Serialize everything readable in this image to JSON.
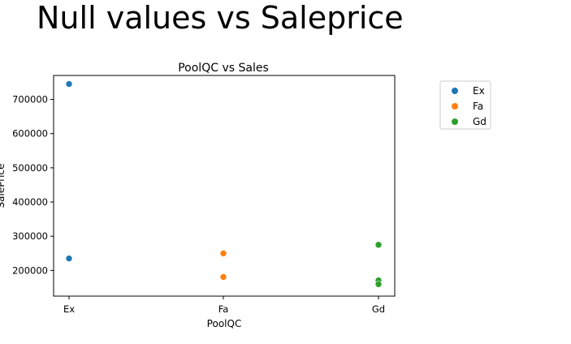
{
  "page": {
    "title": "Null values vs Saleprice"
  },
  "chart_data": {
    "type": "scatter",
    "title": "PoolQC vs Sales",
    "xlabel": "PoolQC",
    "ylabel": "SalePrice",
    "categories": [
      "Ex",
      "Fa",
      "Gd"
    ],
    "ylim": [
      125000,
      770000
    ],
    "yticks": [
      200000,
      300000,
      400000,
      500000,
      600000,
      700000
    ],
    "grid": false,
    "legend_position": "outside-right",
    "series": [
      {
        "name": "Ex",
        "color": "#1f77b4",
        "points": [
          {
            "x": "Ex",
            "y": 745000
          },
          {
            "x": "Ex",
            "y": 235000
          }
        ]
      },
      {
        "name": "Fa",
        "color": "#ff7f0e",
        "points": [
          {
            "x": "Fa",
            "y": 250000
          },
          {
            "x": "Fa",
            "y": 181000
          }
        ]
      },
      {
        "name": "Gd",
        "color": "#2ca02c",
        "points": [
          {
            "x": "Gd",
            "y": 274970
          },
          {
            "x": "Gd",
            "y": 171000
          },
          {
            "x": "Gd",
            "y": 160000
          }
        ]
      }
    ]
  }
}
